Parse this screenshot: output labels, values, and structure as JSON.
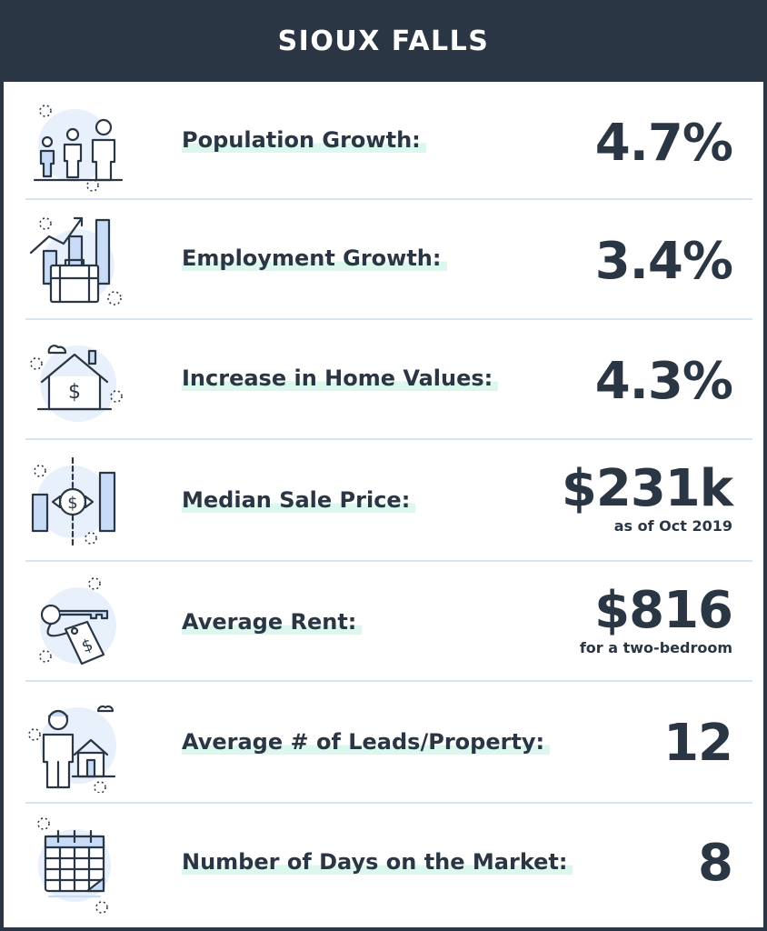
{
  "title": "SIOUX FALLS",
  "colors": {
    "dark": "#2b3645",
    "accent": "#dbf7ee",
    "divider": "#d7e4f4",
    "icon_bg": "#e8f0fc",
    "icon_fill": "#c9dcf7"
  },
  "metrics": [
    {
      "icon": "population-icon",
      "label": "Population Growth:",
      "value": "4.7%",
      "note": ""
    },
    {
      "icon": "employment-icon",
      "label": "Employment Growth:",
      "value": "3.4%",
      "note": ""
    },
    {
      "icon": "home-value-icon",
      "label": "Increase in Home Values:",
      "value": "4.3%",
      "note": ""
    },
    {
      "icon": "sale-price-icon",
      "label": "Median Sale Price:",
      "value": "$231k",
      "note": "as of Oct 2019"
    },
    {
      "icon": "rent-key-icon",
      "label": "Average Rent:",
      "value": "$816",
      "note": "for a two-bedroom"
    },
    {
      "icon": "leads-icon",
      "label": "Average # of Leads/Property:",
      "value": "12",
      "note": ""
    },
    {
      "icon": "calendar-icon",
      "label": "Number of Days on the Market:",
      "value": "8",
      "note": ""
    }
  ]
}
